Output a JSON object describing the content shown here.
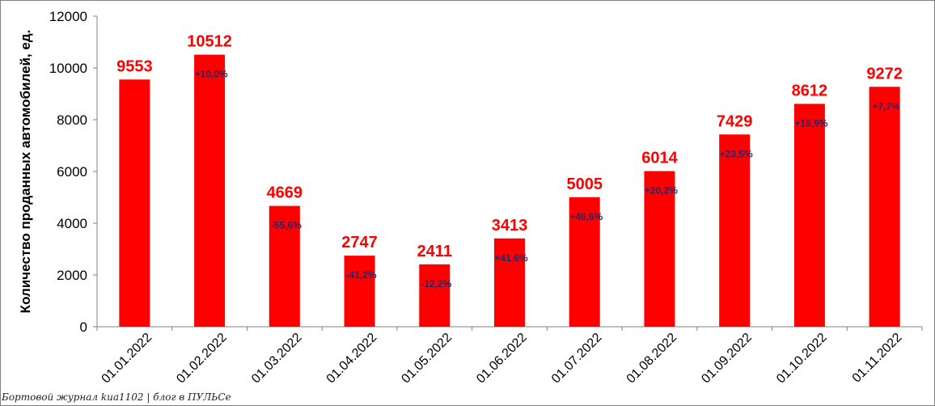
{
  "chart_data": {
    "type": "bar",
    "title": "",
    "xlabel": "",
    "ylabel": "Количество проданных  автомобилей, ед.",
    "ylim": [
      0,
      12000
    ],
    "yticks": [
      0,
      2000,
      4000,
      6000,
      8000,
      10000,
      12000
    ],
    "grid": false,
    "legend": "none",
    "categories": [
      "01.01.2022",
      "01.02.2022",
      "01.03.2022",
      "01.04.2022",
      "01.05.2022",
      "01.06.2022",
      "01.07.2022",
      "01.08.2022",
      "01.09.2022",
      "01.10.2022",
      "01.11.2022"
    ],
    "values": [
      9553,
      10512,
      4669,
      2747,
      2411,
      3413,
      5005,
      6014,
      7429,
      8612,
      9272
    ],
    "value_labels": [
      "9553",
      "10512",
      "4669",
      "2747",
      "2411",
      "3413",
      "5005",
      "6014",
      "7429",
      "8612",
      "9272"
    ],
    "change_labels": [
      "",
      "+10,0%",
      "-55,6%",
      "-41,2%",
      "-12,2%",
      "+41,6%",
      "+46,6%",
      "+20,2%",
      "+23,5%",
      "+15,9%",
      "+7,7%"
    ],
    "bar_color": "#ff0000",
    "value_label_color": "#ff0000",
    "change_label_color": "#1f2a6b"
  },
  "watermark": "Бортовой журнал kиа1102 | блог в ПУЛЬСе"
}
